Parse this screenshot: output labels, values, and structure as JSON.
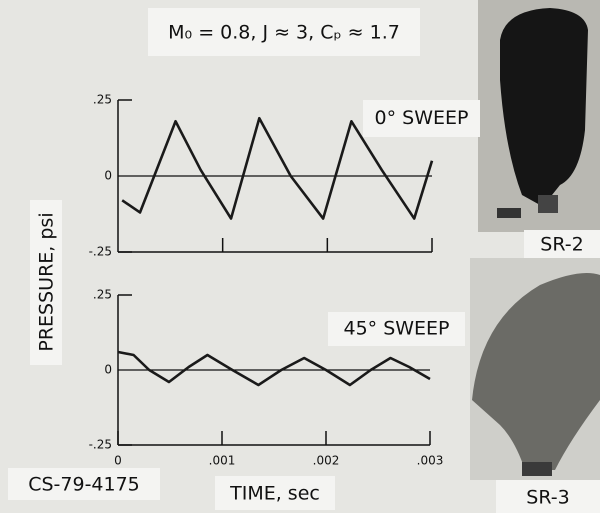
{
  "title": "M₀ = 0.8, J ≈ 3, Cₚ ≈ 1.7",
  "y_label": "PRESSURE, psi",
  "x_label": "TIME, sec",
  "figure_id": "CS-79-4175",
  "photo_labels": [
    "SR-2",
    "SR-3"
  ],
  "chart_data": [
    {
      "type": "line",
      "annotation": "0° SWEEP",
      "x": [
        4e-05,
        0.00021,
        0.00055,
        0.00079,
        0.00108,
        0.00135,
        0.00165,
        0.00196,
        0.00223,
        0.00252,
        0.00283,
        0.003
      ],
      "values": [
        -0.08,
        -0.12,
        0.18,
        0.02,
        -0.14,
        0.19,
        0.0,
        -0.14,
        0.18,
        0.02,
        -0.14,
        0.05
      ],
      "color": "#1a1a1a",
      "xlim": [
        0,
        0.003
      ],
      "xticks": [
        0.001,
        0.002,
        0.003
      ],
      "ylim": [
        -0.25,
        0.25
      ],
      "yticks": [
        {
          "value": 0.25,
          "label": ".25"
        },
        0,
        {
          "value": -0.25,
          "label": "-.25"
        }
      ]
    },
    {
      "type": "line",
      "annotation": "45° SWEEP",
      "x": [
        0,
        0.00015,
        0.0003,
        0.00049,
        0.00068,
        0.00086,
        0.0011,
        0.00135,
        0.00157,
        0.00179,
        0.002,
        0.00223,
        0.00243,
        0.00262,
        0.0028,
        0.003
      ],
      "values": [
        0.06,
        0.05,
        0.0,
        -0.04,
        0.01,
        0.05,
        0.0,
        -0.05,
        0.0,
        0.04,
        0.0,
        -0.05,
        0.0,
        0.04,
        0.01,
        -0.03
      ],
      "color": "#1a1a1a",
      "xlim": [
        0,
        0.003
      ],
      "xticks": [
        0,
        {
          "value": 0.001,
          "label": ".001"
        },
        {
          "value": 0.002,
          "label": ".002"
        },
        {
          "value": 0.003,
          "label": ".003"
        }
      ],
      "ylim": [
        -0.25,
        0.25
      ],
      "yticks": [
        {
          "value": 0.25,
          "label": ".25"
        },
        0,
        {
          "value": -0.25,
          "label": "-.25"
        }
      ]
    }
  ]
}
